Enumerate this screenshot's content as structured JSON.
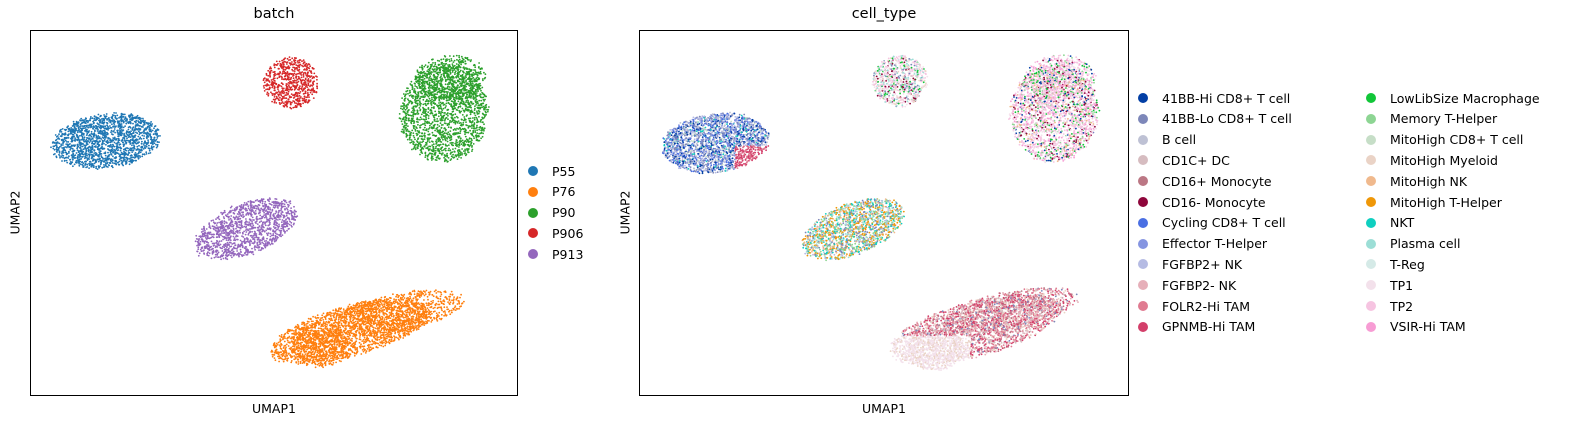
{
  "chart_data": [
    {
      "type": "scatter",
      "title": "batch",
      "xlabel": "UMAP1",
      "ylabel": "UMAP2",
      "grid": false,
      "legend_position": "right",
      "series": [
        {
          "name": "P55",
          "color": "#1f77b4"
        },
        {
          "name": "P76",
          "color": "#ff7f0e"
        },
        {
          "name": "P90",
          "color": "#2ca02c"
        },
        {
          "name": "P906",
          "color": "#d62728"
        },
        {
          "name": "P913",
          "color": "#9467bd"
        }
      ]
    },
    {
      "type": "scatter",
      "title": "cell_type",
      "xlabel": "UMAP1",
      "ylabel": "UMAP2",
      "grid": false,
      "legend_position": "right",
      "series": [
        {
          "name": "41BB-Hi CD8+ T cell",
          "color": "#023fa5"
        },
        {
          "name": "41BB-Lo CD8+ T cell",
          "color": "#7d87b9"
        },
        {
          "name": "B cell",
          "color": "#bec1d4"
        },
        {
          "name": "CD1C+ DC",
          "color": "#d6bcc0"
        },
        {
          "name": "CD16+ Monocyte",
          "color": "#bb7784"
        },
        {
          "name": "CD16- Monocyte",
          "color": "#8e063b"
        },
        {
          "name": "Cycling CD8+ T cell",
          "color": "#4a6fe3"
        },
        {
          "name": "Effector T-Helper",
          "color": "#8595e1"
        },
        {
          "name": "FGFBP2+ NK",
          "color": "#b5bbe3"
        },
        {
          "name": "FGFBP2- NK",
          "color": "#e6afb9"
        },
        {
          "name": "FOLR2-Hi TAM",
          "color": "#e07b91"
        },
        {
          "name": "GPNMB-Hi TAM",
          "color": "#d33f6a"
        },
        {
          "name": "LowLibSize Macrophage",
          "color": "#11c638"
        },
        {
          "name": "Memory T-Helper",
          "color": "#8dd593"
        },
        {
          "name": "MitoHigh CD8+ T cell",
          "color": "#c6dec7"
        },
        {
          "name": "MitoHigh Myeloid",
          "color": "#ead3c6"
        },
        {
          "name": "MitoHigh NK",
          "color": "#f0b98d"
        },
        {
          "name": "MitoHigh T-Helper",
          "color": "#ef9708"
        },
        {
          "name": "NKT",
          "color": "#0fcfc0"
        },
        {
          "name": "Plasma cell",
          "color": "#9cded6"
        },
        {
          "name": "T-Reg",
          "color": "#d5eae7"
        },
        {
          "name": "TP1",
          "color": "#f3e1eb"
        },
        {
          "name": "TP2",
          "color": "#f6c4e1"
        },
        {
          "name": "VSIR-Hi TAM",
          "color": "#f79cd4"
        }
      ]
    }
  ]
}
